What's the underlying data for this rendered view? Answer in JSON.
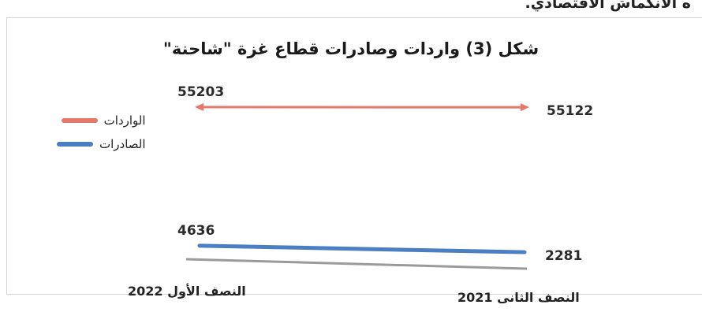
{
  "page": {
    "top_text": "ه الانكماش الاقتصادي."
  },
  "chart_data": {
    "type": "line",
    "title": "شكل (3) واردات وصادرات قطاع غزة \"شاحنة\"",
    "categories": [
      "النصف الأول 2022",
      "النصف الثانى 2021"
    ],
    "series": [
      {
        "name": "الواردات",
        "values": [
          55203,
          55122
        ],
        "color": "#e6786a"
      },
      {
        "name": "الصادرات",
        "values": [
          4636,
          2281
        ],
        "color": "#4a7fc1"
      }
    ],
    "legend_position": "left"
  }
}
